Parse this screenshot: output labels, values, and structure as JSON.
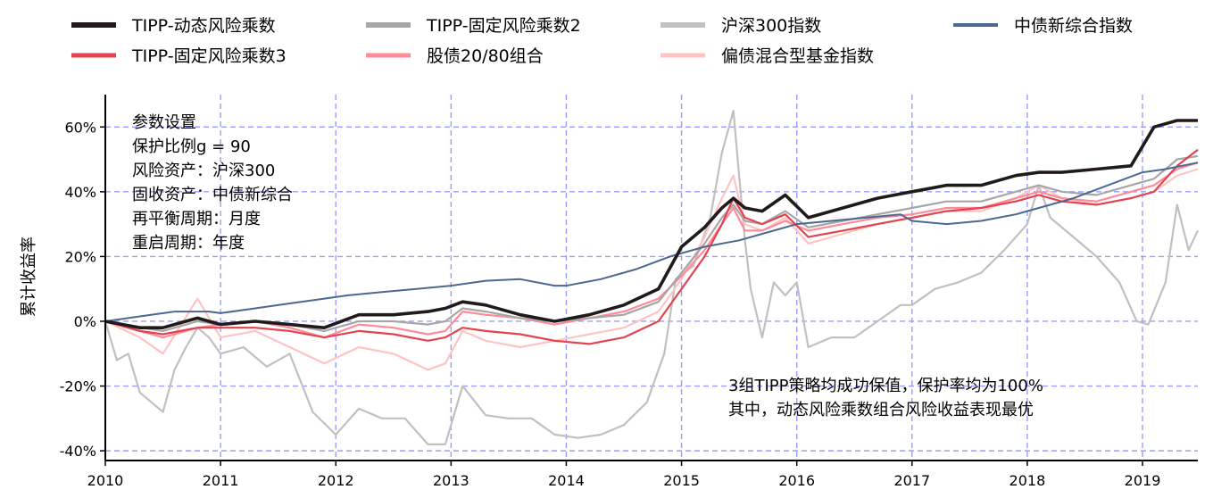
{
  "chart_data": {
    "type": "line",
    "title": "",
    "xlabel": "",
    "ylabel": "累计收益率",
    "xlim": [
      2010.0,
      2019.48
    ],
    "ylim": [
      -43,
      70
    ],
    "x_ticks": [
      {
        "value": 2010,
        "label": "2010"
      },
      {
        "value": 2011,
        "label": "2011"
      },
      {
        "value": 2012,
        "label": "2012"
      },
      {
        "value": 2013,
        "label": "2013"
      },
      {
        "value": 2014,
        "label": "2014"
      },
      {
        "value": 2015,
        "label": "2015"
      },
      {
        "value": 2016,
        "label": "2016"
      },
      {
        "value": 2017,
        "label": "2017"
      },
      {
        "value": 2018,
        "label": "2018"
      },
      {
        "value": 2019,
        "label": "2019"
      }
    ],
    "y_ticks": [
      {
        "value": -40,
        "label": "-40%"
      },
      {
        "value": -20,
        "label": "-20%"
      },
      {
        "value": 0,
        "label": "0%"
      },
      {
        "value": 20,
        "label": "20%"
      },
      {
        "value": 40,
        "label": "40%"
      },
      {
        "value": 60,
        "label": "60%"
      }
    ],
    "grid": true,
    "legend_position": "top",
    "annotations": {
      "params": [
        "参数设置",
        "保护比例g = 90",
        "风险资产：沪深300",
        "固收资产：中债新综合",
        "再平衡周期：月度",
        "重启周期：年度"
      ],
      "conclusion": [
        "3组TIPP策略均成功保值，保护率均为100%",
        "其中，动态风险乘数组合风险收益表现最优"
      ]
    },
    "series": [
      {
        "name": "沪深300指数",
        "color": "#c0c0c0",
        "width": 2.2,
        "x": [
          2010.0,
          2010.1,
          2010.2,
          2010.3,
          2010.4,
          2010.5,
          2010.6,
          2010.7,
          2010.8,
          2010.9,
          2011.0,
          2011.2,
          2011.4,
          2011.6,
          2011.8,
          2012.0,
          2012.2,
          2012.4,
          2012.6,
          2012.8,
          2012.95,
          2013.1,
          2013.3,
          2013.5,
          2013.7,
          2013.9,
          2014.1,
          2014.3,
          2014.5,
          2014.7,
          2014.85,
          2014.95,
          2015.1,
          2015.25,
          2015.35,
          2015.45,
          2015.5,
          2015.55,
          2015.6,
          2015.7,
          2015.8,
          2015.9,
          2016.0,
          2016.1,
          2016.3,
          2016.5,
          2016.7,
          2016.9,
          2017.0,
          2017.2,
          2017.4,
          2017.6,
          2017.8,
          2018.0,
          2018.1,
          2018.2,
          2018.4,
          2018.6,
          2018.8,
          2018.95,
          2019.05,
          2019.2,
          2019.3,
          2019.4,
          2019.48
        ],
        "y": [
          0,
          -12,
          -10,
          -22,
          -25,
          -28,
          -15,
          -8,
          -2,
          -5,
          -10,
          -8,
          -14,
          -10,
          -28,
          -35,
          -27,
          -30,
          -30,
          -38,
          -38,
          -20,
          -29,
          -30,
          -30,
          -35,
          -36,
          -35,
          -32,
          -25,
          -10,
          13,
          17,
          32,
          52,
          65,
          45,
          25,
          10,
          -5,
          12,
          8,
          12,
          -8,
          -5,
          -5,
          0,
          5,
          5,
          10,
          12,
          15,
          22,
          30,
          42,
          32,
          26,
          20,
          12,
          0,
          -1,
          12,
          36,
          22,
          28
        ]
      },
      {
        "name": "偏债混合型基金指数",
        "color": "#ffc3c3",
        "width": 2.2,
        "x": [
          2010.0,
          2010.3,
          2010.5,
          2010.8,
          2011.0,
          2011.3,
          2011.6,
          2011.9,
          2012.2,
          2012.5,
          2012.8,
          2012.95,
          2013.1,
          2013.3,
          2013.6,
          2013.9,
          2014.2,
          2014.5,
          2014.8,
          2015.0,
          2015.2,
          2015.35,
          2015.45,
          2015.55,
          2015.7,
          2015.9,
          2016.1,
          2016.4,
          2016.7,
          2017.0,
          2017.3,
          2017.6,
          2017.9,
          2018.1,
          2018.3,
          2018.6,
          2018.9,
          2019.1,
          2019.3,
          2019.48
        ],
        "y": [
          0,
          -5,
          -10,
          7,
          -5,
          -3,
          -8,
          -13,
          -8,
          -10,
          -15,
          -13,
          -3,
          -6,
          -8,
          -6,
          -4,
          -2,
          3,
          13,
          26,
          38,
          45,
          30,
          28,
          32,
          24,
          27,
          30,
          32,
          34,
          34,
          38,
          42,
          38,
          36,
          38,
          40,
          45,
          47
        ]
      },
      {
        "name": "股债20/80组合",
        "color": "#ff8a98",
        "width": 2.2,
        "x": [
          2010.0,
          2010.3,
          2010.5,
          2010.8,
          2011.0,
          2011.3,
          2011.6,
          2011.9,
          2012.2,
          2012.5,
          2012.8,
          2012.95,
          2013.1,
          2013.3,
          2013.6,
          2013.9,
          2014.2,
          2014.5,
          2014.8,
          2015.0,
          2015.2,
          2015.35,
          2015.45,
          2015.55,
          2015.7,
          2015.9,
          2016.1,
          2016.4,
          2016.7,
          2017.0,
          2017.3,
          2017.6,
          2017.9,
          2018.1,
          2018.3,
          2018.6,
          2018.9,
          2019.1,
          2019.3,
          2019.48
        ],
        "y": [
          0,
          -3,
          -5,
          -2,
          -1,
          0,
          -2,
          -5,
          -1,
          -2,
          -4,
          -3,
          3,
          2,
          1,
          -1,
          1,
          3,
          7,
          14,
          22,
          30,
          35,
          28,
          28,
          31,
          28,
          30,
          32,
          33,
          35,
          35,
          38,
          40,
          38,
          37,
          40,
          42,
          47,
          49
        ]
      },
      {
        "name": "TIPP-固定风险乘数2",
        "color": "#a6a6a6",
        "width": 2.2,
        "x": [
          2010.0,
          2010.3,
          2010.5,
          2010.8,
          2011.0,
          2011.3,
          2011.6,
          2011.9,
          2012.2,
          2012.5,
          2012.8,
          2012.95,
          2013.1,
          2013.3,
          2013.6,
          2013.9,
          2014.2,
          2014.5,
          2014.8,
          2015.0,
          2015.2,
          2015.35,
          2015.45,
          2015.55,
          2015.7,
          2015.9,
          2016.1,
          2016.4,
          2016.7,
          2017.0,
          2017.3,
          2017.6,
          2017.9,
          2018.1,
          2018.3,
          2018.6,
          2018.9,
          2019.1,
          2019.3,
          2019.48
        ],
        "y": [
          0,
          -2,
          -3,
          0,
          -1,
          0,
          -1,
          -3,
          0,
          0,
          -1,
          0,
          4,
          3,
          1,
          0,
          1,
          2,
          6,
          15,
          24,
          32,
          36,
          31,
          30,
          34,
          29,
          31,
          33,
          35,
          37,
          37,
          40,
          42,
          40,
          39,
          42,
          44,
          50,
          51
        ]
      },
      {
        "name": "TIPP-固定风险乘数3",
        "color": "#e3434f",
        "width": 2.2,
        "x": [
          2010.0,
          2010.3,
          2010.5,
          2010.8,
          2011.0,
          2011.3,
          2011.6,
          2011.9,
          2012.2,
          2012.5,
          2012.8,
          2012.95,
          2013.1,
          2013.3,
          2013.6,
          2013.9,
          2014.2,
          2014.5,
          2014.8,
          2015.0,
          2015.2,
          2015.35,
          2015.45,
          2015.55,
          2015.7,
          2015.9,
          2016.1,
          2016.4,
          2016.7,
          2017.0,
          2017.3,
          2017.6,
          2017.9,
          2018.1,
          2018.3,
          2018.6,
          2018.9,
          2019.1,
          2019.3,
          2019.48
        ],
        "y": [
          0,
          -3,
          -4,
          -2,
          -2,
          -2,
          -3,
          -5,
          -3,
          -4,
          -6,
          -5,
          -2,
          -3,
          -4,
          -6,
          -7,
          -5,
          0,
          10,
          20,
          30,
          38,
          32,
          30,
          33,
          26,
          28,
          30,
          32,
          34,
          35,
          37,
          39,
          37,
          36,
          38,
          40,
          48,
          53
        ]
      },
      {
        "name": "中债新综合指数",
        "color": "#4b6891",
        "width": 2.0,
        "x": [
          2010.0,
          2010.3,
          2010.6,
          2010.9,
          2011.0,
          2011.3,
          2011.6,
          2011.9,
          2012.1,
          2012.4,
          2012.7,
          2013.0,
          2013.3,
          2013.6,
          2013.9,
          2014.0,
          2014.3,
          2014.6,
          2014.9,
          2015.2,
          2015.5,
          2015.8,
          2016.0,
          2016.3,
          2016.6,
          2016.9,
          2017.0,
          2017.3,
          2017.6,
          2017.9,
          2018.1,
          2018.4,
          2018.7,
          2019.0,
          2019.2,
          2019.48
        ],
        "y": [
          0,
          1.5,
          3,
          3,
          2.5,
          4,
          5.5,
          7,
          8,
          9,
          10,
          11,
          12.5,
          13,
          11,
          11,
          13,
          16,
          20,
          23,
          25,
          28,
          30,
          31,
          32,
          33,
          31,
          30,
          31,
          33,
          35,
          38,
          42,
          46,
          47,
          49
        ]
      },
      {
        "name": "TIPP-动态风险乘数",
        "color": "#201a1a",
        "width": 3.6,
        "x": [
          2010.0,
          2010.3,
          2010.5,
          2010.8,
          2011.0,
          2011.3,
          2011.6,
          2011.9,
          2012.2,
          2012.5,
          2012.8,
          2012.95,
          2013.1,
          2013.3,
          2013.6,
          2013.9,
          2014.2,
          2014.5,
          2014.8,
          2015.0,
          2015.2,
          2015.35,
          2015.45,
          2015.55,
          2015.7,
          2015.9,
          2016.1,
          2016.4,
          2016.7,
          2017.0,
          2017.3,
          2017.6,
          2017.9,
          2018.1,
          2018.3,
          2018.6,
          2018.9,
          2019.1,
          2019.3,
          2019.48
        ],
        "y": [
          0,
          -2,
          -2,
          1,
          -1,
          0,
          -1,
          -2,
          2,
          2,
          3,
          4,
          6,
          5,
          2,
          0,
          2,
          5,
          10,
          23,
          29,
          35,
          38,
          35,
          34,
          39,
          32,
          35,
          38,
          40,
          42,
          42,
          45,
          46,
          46,
          47,
          48,
          60,
          62,
          62
        ]
      }
    ]
  },
  "legend": {
    "items": [
      {
        "name": "TIPP-动态风险乘数",
        "color": "#201a1a",
        "width": 6
      },
      {
        "name": "TIPP-固定风险乘数2",
        "color": "#a6a6a6",
        "width": 6
      },
      {
        "name": "沪深300指数",
        "color": "#c0c0c0",
        "width": 6
      },
      {
        "name": "中债新综合指数",
        "color": "#4b6891",
        "width": 4
      },
      {
        "name": "TIPP-固定风险乘数3",
        "color": "#e3434f",
        "width": 5
      },
      {
        "name": "股债20/80组合",
        "color": "#ff8a98",
        "width": 5
      },
      {
        "name": "偏债混合型基金指数",
        "color": "#ffc3c3",
        "width": 5
      }
    ]
  },
  "colors": {
    "grid": "#9b9bff",
    "axis": "#000000"
  }
}
